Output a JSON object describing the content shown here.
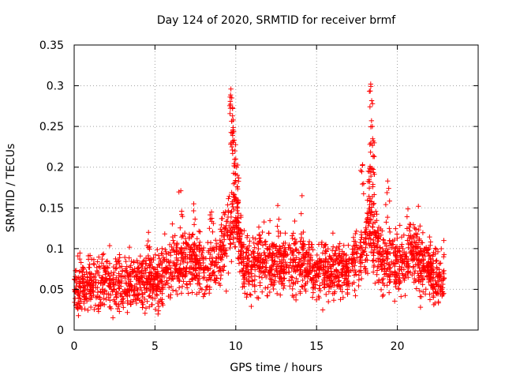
{
  "chart_data": {
    "type": "scatter",
    "title": "Day 124 of 2020, SRMTID for receiver brmf",
    "xlabel": "GPS time / hours",
    "ylabel": "SRMTID / TECUs",
    "xlim": [
      0,
      25
    ],
    "ylim": [
      0,
      0.35
    ],
    "xticks": [
      0,
      5,
      10,
      15,
      20
    ],
    "xtick_labels": [
      "0",
      "5",
      "10",
      "15",
      "20"
    ],
    "yticks": [
      0,
      0.05,
      0.1,
      0.15,
      0.2,
      0.25,
      0.3,
      0.35
    ],
    "ytick_labels": [
      "0",
      "0.05",
      "0.1",
      "0.15",
      "0.2",
      "0.25",
      "0.3",
      "0.35"
    ],
    "grid": true,
    "marker": "+",
    "color": "#ff0000",
    "series": [
      {
        "name": "SRMTID",
        "trend": [
          [
            0.0,
            0.052
          ],
          [
            1.0,
            0.055
          ],
          [
            2.0,
            0.057
          ],
          [
            3.0,
            0.06
          ],
          [
            4.0,
            0.058
          ],
          [
            5.0,
            0.06
          ],
          [
            6.0,
            0.078
          ],
          [
            7.0,
            0.085
          ],
          [
            8.0,
            0.078
          ],
          [
            9.0,
            0.088
          ],
          [
            9.6,
            0.125
          ],
          [
            10.0,
            0.14
          ],
          [
            10.5,
            0.08
          ],
          [
            11.0,
            0.08
          ],
          [
            12.0,
            0.085
          ],
          [
            13.0,
            0.078
          ],
          [
            14.0,
            0.086
          ],
          [
            15.0,
            0.074
          ],
          [
            16.0,
            0.076
          ],
          [
            17.0,
            0.077
          ],
          [
            17.9,
            0.1
          ],
          [
            18.3,
            0.13
          ],
          [
            19.0,
            0.082
          ],
          [
            20.0,
            0.085
          ],
          [
            21.0,
            0.095
          ],
          [
            22.0,
            0.07
          ],
          [
            22.9,
            0.065
          ]
        ],
        "peaks": [
          [
            9.7,
            0.296
          ],
          [
            9.75,
            0.285
          ],
          [
            9.8,
            0.263
          ],
          [
            9.85,
            0.258
          ],
          [
            9.9,
            0.233
          ],
          [
            9.95,
            0.22
          ],
          [
            10.0,
            0.21
          ],
          [
            10.05,
            0.2
          ],
          [
            10.1,
            0.19
          ],
          [
            18.35,
            0.302
          ],
          [
            18.4,
            0.257
          ],
          [
            18.45,
            0.25
          ],
          [
            18.3,
            0.228
          ],
          [
            18.5,
            0.213
          ],
          [
            18.2,
            0.195
          ],
          [
            17.85,
            0.203
          ],
          [
            6.6,
            0.171
          ],
          [
            7.4,
            0.155
          ],
          [
            8.5,
            0.145
          ],
          [
            14.1,
            0.165
          ],
          [
            19.4,
            0.183
          ],
          [
            21.3,
            0.152
          ],
          [
            12.6,
            0.153
          ],
          [
            4.6,
            0.12
          ]
        ]
      }
    ]
  }
}
